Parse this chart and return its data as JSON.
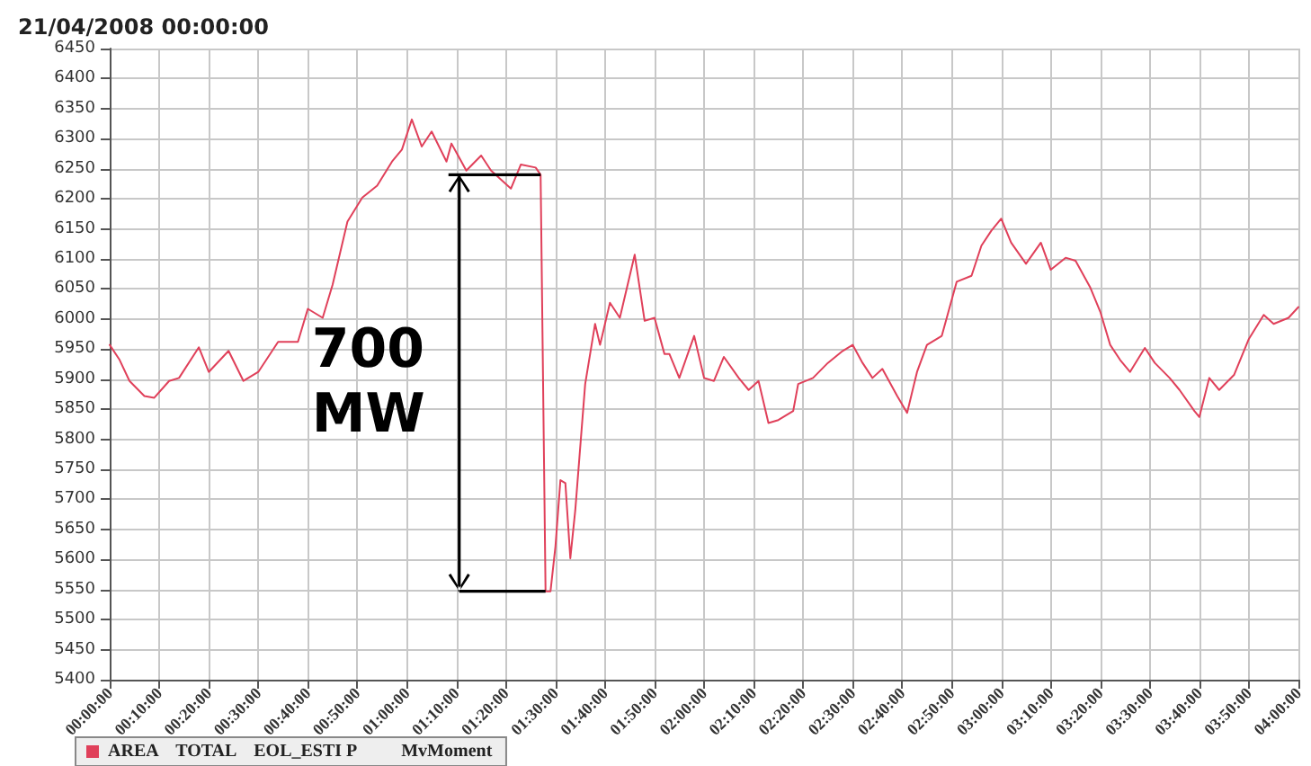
{
  "chart_data": {
    "type": "line",
    "title": "21/04/2008 00:00:00",
    "x": [
      "2008-04-21T00:00",
      "2008-04-21T00:02",
      "2008-04-21T00:04",
      "2008-04-21T00:07",
      "2008-04-21T00:09",
      "2008-04-21T00:12",
      "2008-04-21T00:14",
      "2008-04-21T00:18",
      "2008-04-21T00:20",
      "2008-04-21T00:24",
      "2008-04-21T00:27",
      "2008-04-21T00:30",
      "2008-04-21T00:34",
      "2008-04-21T00:38",
      "2008-04-21T00:40",
      "2008-04-21T00:43",
      "2008-04-21T00:45",
      "2008-04-21T00:48",
      "2008-04-21T00:51",
      "2008-04-21T00:54",
      "2008-04-21T00:57",
      "2008-04-21T00:59",
      "2008-04-21T01:01",
      "2008-04-21T01:03",
      "2008-04-21T01:05",
      "2008-04-21T01:08",
      "2008-04-21T01:09",
      "2008-04-21T01:12",
      "2008-04-21T01:15",
      "2008-04-21T01:17",
      "2008-04-21T01:21",
      "2008-04-21T01:23",
      "2008-04-21T01:26",
      "2008-04-21T01:27",
      "2008-04-21T01:28",
      "2008-04-21T01:29",
      "2008-04-21T01:30",
      "2008-04-21T01:31",
      "2008-04-21T01:32",
      "2008-04-21T01:33",
      "2008-04-21T01:34",
      "2008-04-21T01:36",
      "2008-04-21T01:38",
      "2008-04-21T01:39",
      "2008-04-21T01:41",
      "2008-04-21T01:43",
      "2008-04-21T01:46",
      "2008-04-21T01:48",
      "2008-04-21T01:50",
      "2008-04-21T01:52",
      "2008-04-21T01:53",
      "2008-04-21T01:55",
      "2008-04-21T01:58",
      "2008-04-21T02:00",
      "2008-04-21T02:02",
      "2008-04-21T02:04",
      "2008-04-21T02:07",
      "2008-04-21T02:09",
      "2008-04-21T02:11",
      "2008-04-21T02:13",
      "2008-04-21T02:15",
      "2008-04-21T02:18",
      "2008-04-21T02:19",
      "2008-04-21T02:22",
      "2008-04-21T02:25",
      "2008-04-21T02:28",
      "2008-04-21T02:30",
      "2008-04-21T02:32",
      "2008-04-21T02:34",
      "2008-04-21T02:36",
      "2008-04-21T02:39",
      "2008-04-21T02:41",
      "2008-04-21T02:43",
      "2008-04-21T02:45",
      "2008-04-21T02:48",
      "2008-04-21T02:49",
      "2008-04-21T02:51",
      "2008-04-21T02:54",
      "2008-04-21T02:56",
      "2008-04-21T02:58",
      "2008-04-21T03:00",
      "2008-04-21T03:02",
      "2008-04-21T03:05",
      "2008-04-21T03:08",
      "2008-04-21T03:10",
      "2008-04-21T03:13",
      "2008-04-21T03:15",
      "2008-04-21T03:18",
      "2008-04-21T03:20",
      "2008-04-21T03:22",
      "2008-04-21T03:24",
      "2008-04-21T03:26",
      "2008-04-21T03:29",
      "2008-04-21T03:31",
      "2008-04-21T03:34",
      "2008-04-21T03:36",
      "2008-04-21T03:39",
      "2008-04-21T03:40",
      "2008-04-21T03:42",
      "2008-04-21T03:44",
      "2008-04-21T03:47",
      "2008-04-21T03:50",
      "2008-04-21T03:53",
      "2008-04-21T03:55",
      "2008-04-21T03:58",
      "2008-04-21T04:00"
    ],
    "series": [
      {
        "name": "AREA    TOTAL    EOL_ESTI P          MvMoment",
        "color": "#e0405a",
        "values": [
          5957,
          5932,
          5897,
          5872,
          5869,
          5897,
          5902,
          5953,
          5912,
          5947,
          5897,
          5912,
          5962,
          5962,
          6017,
          6002,
          6057,
          6162,
          6202,
          6222,
          6262,
          6282,
          6332,
          6287,
          6312,
          6262,
          6292,
          6247,
          6272,
          6247,
          6217,
          6257,
          6252,
          6240,
          5547,
          5547,
          5622,
          5732,
          5727,
          5602,
          5682,
          5892,
          5992,
          5957,
          6027,
          6002,
          6107,
          5997,
          6002,
          5942,
          5942,
          5902,
          5972,
          5902,
          5897,
          5937,
          5902,
          5882,
          5897,
          5827,
          5832,
          5847,
          5892,
          5902,
          5927,
          5947,
          5957,
          5927,
          5902,
          5917,
          5872,
          5844,
          5912,
          5957,
          5972,
          6002,
          6062,
          6072,
          6122,
          6147,
          6167,
          6127,
          6092,
          6127,
          6082,
          6102,
          6097,
          6052,
          6012,
          5957,
          5932,
          5912,
          5952,
          5927,
          5902,
          5882,
          5847,
          5837,
          5902,
          5882,
          5907,
          5967,
          6007,
          5992,
          6002,
          6020
        ]
      }
    ],
    "xlim": [
      "2008-04-21T00:00",
      "2008-04-21T04:00"
    ],
    "xticks": [
      {
        "value": "2008-04-21T00:00",
        "label": "00:00:00"
      },
      {
        "value": "2008-04-21T00:10",
        "label": "00:10:00"
      },
      {
        "value": "2008-04-21T00:20",
        "label": "00:20:00"
      },
      {
        "value": "2008-04-21T00:30",
        "label": "00:30:00"
      },
      {
        "value": "2008-04-21T00:40",
        "label": "00:40:00"
      },
      {
        "value": "2008-04-21T00:50",
        "label": "00:50:00"
      },
      {
        "value": "2008-04-21T01:00",
        "label": "01:00:00"
      },
      {
        "value": "2008-04-21T01:10",
        "label": "01:10:00"
      },
      {
        "value": "2008-04-21T01:20",
        "label": "01:20:00"
      },
      {
        "value": "2008-04-21T01:30",
        "label": "01:30:00"
      },
      {
        "value": "2008-04-21T01:40",
        "label": "01:40:00"
      },
      {
        "value": "2008-04-21T01:50",
        "label": "01:50:00"
      },
      {
        "value": "2008-04-21T02:00",
        "label": "02:00:00"
      },
      {
        "value": "2008-04-21T02:10",
        "label": "02:10:00"
      },
      {
        "value": "2008-04-21T02:20",
        "label": "02:20:00"
      },
      {
        "value": "2008-04-21T02:30",
        "label": "02:30:00"
      },
      {
        "value": "2008-04-21T02:40",
        "label": "02:40:00"
      },
      {
        "value": "2008-04-21T02:50",
        "label": "02:50:00"
      },
      {
        "value": "2008-04-21T03:00",
        "label": "03:00:00"
      },
      {
        "value": "2008-04-21T03:10",
        "label": "03:10:00"
      },
      {
        "value": "2008-04-21T03:20",
        "label": "03:20:00"
      },
      {
        "value": "2008-04-21T03:30",
        "label": "03:30:00"
      },
      {
        "value": "2008-04-21T03:40",
        "label": "03:40:00"
      },
      {
        "value": "2008-04-21T03:50",
        "label": "03:50:00"
      },
      {
        "value": "2008-04-21T04:00",
        "label": "04:00:00"
      }
    ],
    "ylim": [
      5400,
      6450
    ],
    "yticks": [
      5400,
      5450,
      5500,
      5550,
      5600,
      5650,
      5700,
      5750,
      5800,
      5850,
      5900,
      5950,
      6000,
      6050,
      6100,
      6150,
      6200,
      6250,
      6300,
      6350,
      6400,
      6450
    ],
    "grid": true,
    "legend": "bottom left",
    "marker": "none",
    "line_style": "solid",
    "annotations": [
      "700 MW"
    ]
  }
}
